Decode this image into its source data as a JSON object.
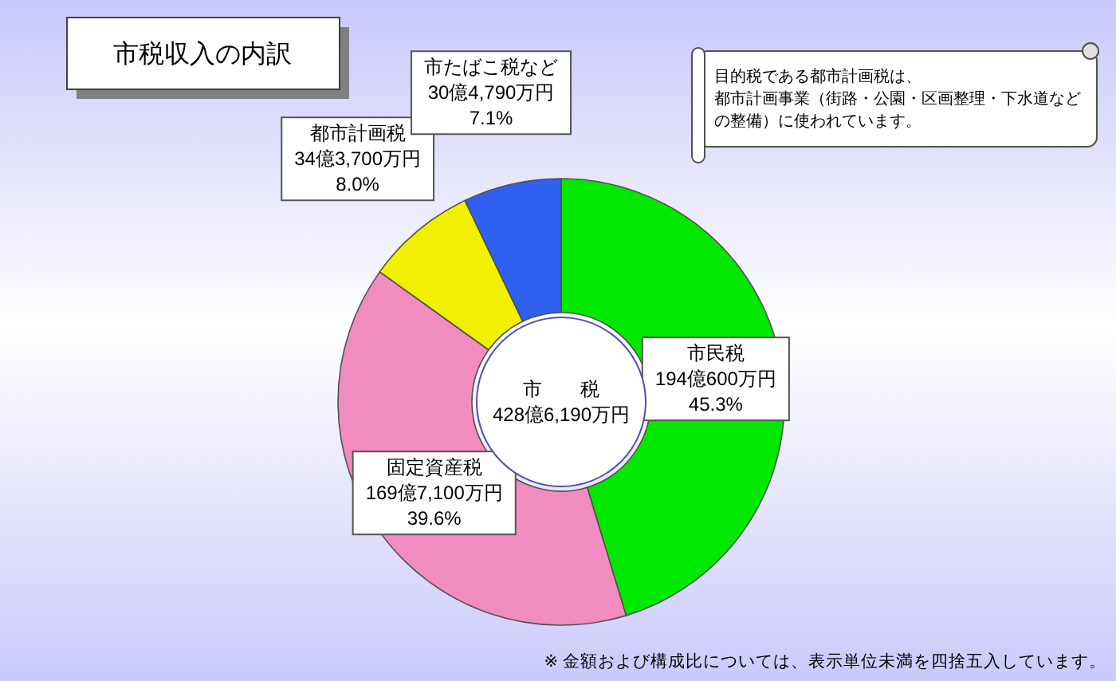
{
  "chart_data": {
    "type": "donut",
    "title": "市税収入の内訳",
    "categories": [
      "市民税",
      "固定資産税",
      "都市計画税",
      "市たばこ税など"
    ],
    "values": [
      45.3,
      39.6,
      8.0,
      7.1
    ],
    "value_labels": [
      "194億600万円\n45.3%",
      "169億7,100万円\n39.6%",
      "34億3,700万円\n8.0%",
      "30億4,790万円\n7.1%"
    ],
    "colors": [
      "#00e800",
      "#f08cc0",
      "#f0f000",
      "#3060f0"
    ],
    "annotations": [
      "市　　税\n428億6,190万円",
      "目的税である都市計画税は、",
      "都市計画事業（街路・公園・区画整理・下水道などの整備）に使われています。",
      "※ 金額および構成比については、表示単位未満を四捨五入しています。"
    ]
  }
}
